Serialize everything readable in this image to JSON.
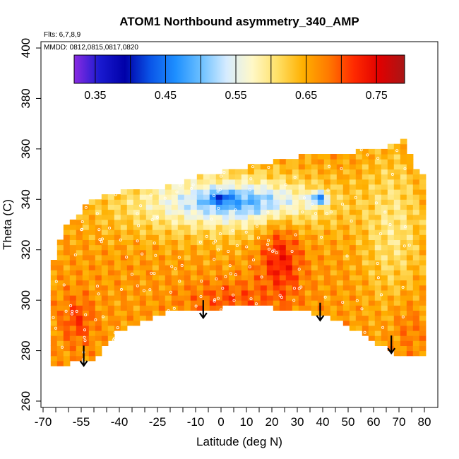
{
  "chart_data": {
    "type": "heatmap",
    "title": "ATOM1 Northbound asymmetry_340_AMP",
    "flights_note": "Flts: 6,7,8,9",
    "date_note": "MMDD: 0812,0815,0817,0820",
    "xlabel": "Latitude (deg N)",
    "ylabel": "Theta (C)",
    "xlim": [
      -70,
      80
    ],
    "ylim": [
      260,
      400
    ],
    "xticks": [
      -70,
      -55,
      -40,
      -25,
      -10,
      0,
      10,
      20,
      30,
      40,
      50,
      60,
      70,
      80
    ],
    "xtick_labels": [
      "-70",
      "-55",
      "-40",
      "-25",
      "-10",
      "0",
      "10",
      "20",
      "30",
      "40",
      "50",
      "60",
      "70",
      "80"
    ],
    "yticks": [
      260,
      280,
      300,
      320,
      340,
      360,
      380,
      400
    ],
    "ytick_labels": [
      "260",
      "280",
      "300",
      "320",
      "340",
      "360",
      "380",
      "400"
    ],
    "colorbar": {
      "range": [
        0.32,
        0.79
      ],
      "ticks": [
        0.35,
        0.45,
        0.55,
        0.65,
        0.75
      ],
      "tick_labels": [
        "0.35",
        "0.45",
        "0.55",
        "0.65",
        "0.75"
      ],
      "colors": [
        "#8a2be2",
        "#1a1ad0",
        "#0000a8",
        "#0a55e8",
        "#1e90ff",
        "#6cc0ff",
        "#d6ecff",
        "#fff8c8",
        "#ffe066",
        "#ffb000",
        "#ff7a00",
        "#ff2a00",
        "#e10000",
        "#a81616"
      ]
    },
    "surface_boundary": {
      "lat": [
        -67,
        -60,
        -55,
        -50,
        -45,
        -40,
        -35,
        -30,
        -25,
        -20,
        -15,
        -10,
        -5,
        0,
        5,
        10,
        15,
        20,
        25,
        30,
        35,
        40,
        45,
        50,
        55,
        60,
        65,
        70,
        73,
        80
      ],
      "theta": [
        272,
        274,
        275,
        276,
        281,
        287,
        289,
        291,
        293,
        295,
        296,
        296,
        295,
        296,
        297,
        298,
        297,
        296,
        296,
        295,
        294,
        293,
        291,
        289,
        286,
        283,
        280,
        277,
        277,
        277
      ]
    },
    "top_boundary": {
      "lat": [
        -67,
        -65,
        -61,
        -55,
        -51,
        -45,
        -40,
        -35,
        -30,
        -25,
        -20,
        -15,
        -10,
        -5,
        0,
        5,
        10,
        15,
        20,
        25,
        30,
        35,
        40,
        45,
        50,
        55,
        60,
        65,
        70,
        72,
        75,
        80
      ],
      "theta": [
        312,
        318,
        330,
        335,
        340,
        342,
        343,
        343,
        344,
        344,
        346,
        347,
        349,
        350,
        351,
        352,
        353,
        354,
        355,
        356,
        357,
        357,
        358,
        358,
        358,
        360,
        360,
        361,
        362,
        364,
        355,
        348
      ]
    },
    "arrows": [
      {
        "lat": -54,
        "theta_top": 282,
        "theta_tip": 274
      },
      {
        "lat": -7,
        "theta_top": 300,
        "theta_tip": 293
      },
      {
        "lat": 39,
        "theta_top": 299,
        "theta_tip": 292
      },
      {
        "lat": 67,
        "theta_top": 286,
        "theta_tip": 279
      }
    ],
    "regions": [
      {
        "lat": [
          -67,
          80
        ],
        "theta": [
          272,
          365
        ],
        "value": 0.66,
        "note": "background orange"
      },
      {
        "lat": [
          -45,
          45
        ],
        "theta": [
          325,
          352
        ],
        "value": 0.56,
        "note": "pale mid-level band"
      },
      {
        "lat": [
          -15,
          30
        ],
        "theta": [
          333,
          345
        ],
        "value": 0.49,
        "note": "blue core"
      },
      {
        "lat": [
          -5,
          5
        ],
        "theta": [
          338,
          343
        ],
        "value": 0.42,
        "note": "deep blue patch"
      },
      {
        "lat": [
          35,
          42
        ],
        "theta": [
          338,
          343
        ],
        "value": 0.44,
        "note": "deep blue patch east"
      },
      {
        "lat": [
          15,
          32
        ],
        "theta": [
          300,
          330
        ],
        "value": 0.73,
        "note": "red column"
      },
      {
        "lat": [
          -63,
          -50
        ],
        "theta": [
          282,
          302
        ],
        "value": 0.71,
        "note": "red lower-left"
      },
      {
        "lat": [
          -15,
          25
        ],
        "theta": [
          293,
          308
        ],
        "value": 0.7,
        "note": "red near surface"
      },
      {
        "lat": [
          55,
          80
        ],
        "theta": [
          300,
          360
        ],
        "value": 0.6,
        "note": "pale northern high"
      },
      {
        "lat": [
          68,
          80
        ],
        "theta": [
          277,
          300
        ],
        "value": 0.68,
        "note": "orange northern low"
      }
    ]
  }
}
